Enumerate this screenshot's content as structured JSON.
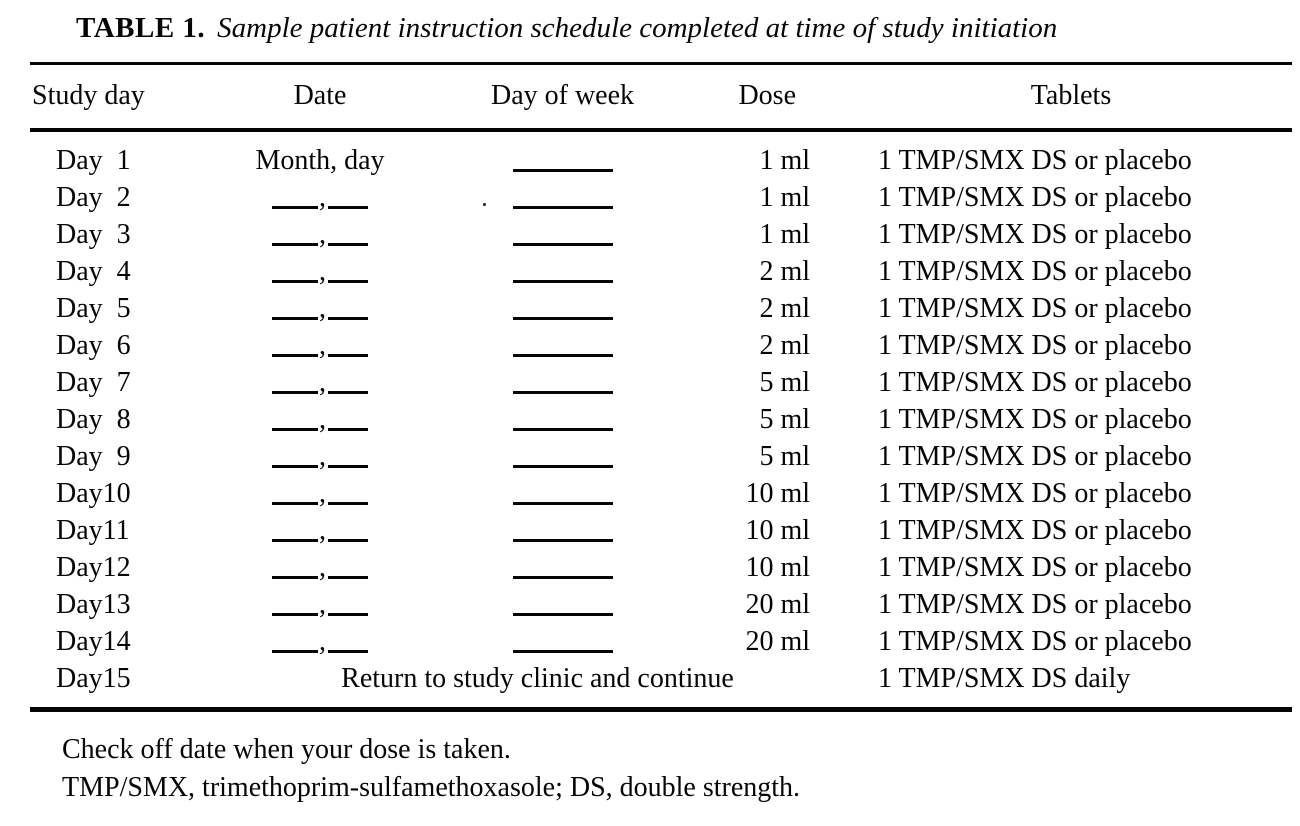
{
  "title": {
    "label": "TABLE 1.",
    "caption": "Sample patient instruction schedule completed at time of study initiation"
  },
  "table": {
    "columns": [
      "Study day",
      "Date",
      "Day of week",
      "Dose",
      "Tablets"
    ],
    "rows": [
      {
        "study_day": "Day  1",
        "date": "Month, day",
        "day_of_week": "",
        "dose": "1 ml",
        "tablets": "1 TMP/SMX DS or placebo"
      },
      {
        "study_day": "Day  2",
        "date": "",
        "day_of_week": "",
        "dose": "1 ml",
        "tablets": "1 TMP/SMX DS or placebo"
      },
      {
        "study_day": "Day  3",
        "date": "",
        "day_of_week": "",
        "dose": "1 ml",
        "tablets": "1 TMP/SMX DS or placebo"
      },
      {
        "study_day": "Day  4",
        "date": "",
        "day_of_week": "",
        "dose": "2 ml",
        "tablets": "1 TMP/SMX DS or placebo"
      },
      {
        "study_day": "Day  5",
        "date": "",
        "day_of_week": "",
        "dose": "2 ml",
        "tablets": "1 TMP/SMX DS or placebo"
      },
      {
        "study_day": "Day  6",
        "date": "",
        "day_of_week": "",
        "dose": "2 ml",
        "tablets": "1 TMP/SMX DS or placebo"
      },
      {
        "study_day": "Day  7",
        "date": "",
        "day_of_week": "",
        "dose": "5 ml",
        "tablets": "1 TMP/SMX DS or placebo"
      },
      {
        "study_day": "Day  8",
        "date": "",
        "day_of_week": "",
        "dose": "5 ml",
        "tablets": "1 TMP/SMX DS or placebo"
      },
      {
        "study_day": "Day  9",
        "date": "",
        "day_of_week": "",
        "dose": "5 ml",
        "tablets": "1 TMP/SMX DS or placebo"
      },
      {
        "study_day": "Day10",
        "date": "",
        "day_of_week": "",
        "dose": "10 ml",
        "tablets": "1 TMP/SMX DS or placebo"
      },
      {
        "study_day": "Day11",
        "date": "",
        "day_of_week": "",
        "dose": "10 ml",
        "tablets": "1 TMP/SMX DS or placebo"
      },
      {
        "study_day": "Day12",
        "date": "",
        "day_of_week": "",
        "dose": "10 ml",
        "tablets": "1 TMP/SMX DS or placebo"
      },
      {
        "study_day": "Day13",
        "date": "",
        "day_of_week": "",
        "dose": "20 ml",
        "tablets": "1 TMP/SMX DS or placebo"
      },
      {
        "study_day": "Day14",
        "date": "",
        "day_of_week": "",
        "dose": "20 ml",
        "tablets": "1 TMP/SMX DS or placebo"
      },
      {
        "study_day": "Day15",
        "note": "Return to study clinic and continue",
        "tablets": "1 TMP/SMX DS daily"
      }
    ]
  },
  "footnotes": [
    "Check off date when your dose is taken.",
    "TMP/SMX, trimethoprim-sulfamethoxasole; DS, double strength."
  ]
}
